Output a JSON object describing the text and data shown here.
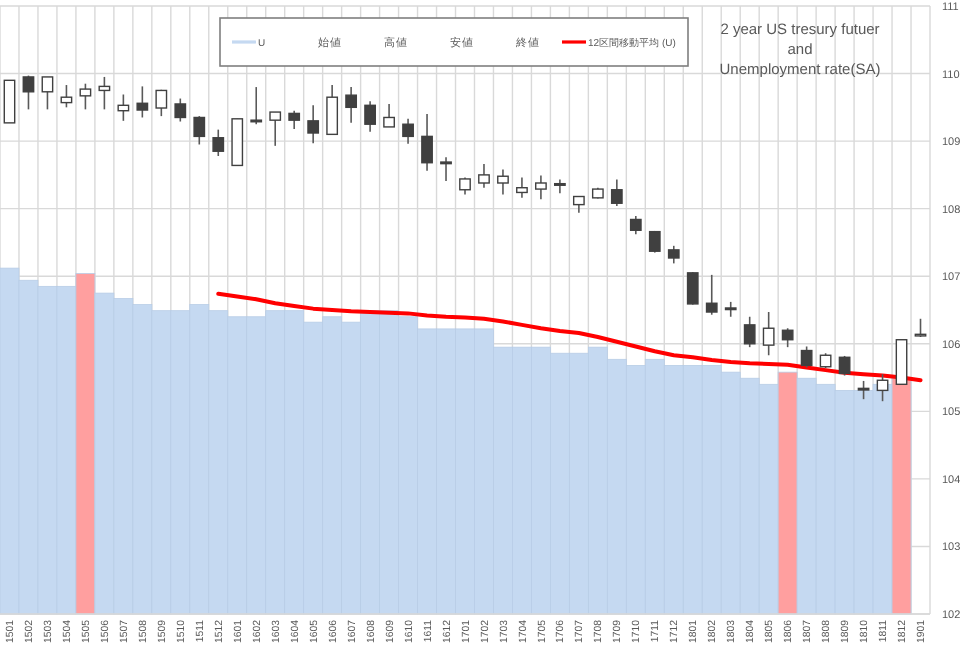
{
  "chart_data": {
    "type": "candlestick",
    "title": "2 year US  tresury futuer\nand\nUnemployment rate(SA)",
    "categories": [
      "1501",
      "1502",
      "1503",
      "1504",
      "1505",
      "1506",
      "1507",
      "1508",
      "1509",
      "1510",
      "1511",
      "1512",
      "1601",
      "1602",
      "1603",
      "1604",
      "1605",
      "1606",
      "1607",
      "1608",
      "1609",
      "1610",
      "1611",
      "1612",
      "1701",
      "1702",
      "1703",
      "1704",
      "1705",
      "1706",
      "1707",
      "1708",
      "1709",
      "1710",
      "1711",
      "1712",
      "1801",
      "1802",
      "1803",
      "1804",
      "1805",
      "1806",
      "1807",
      "1808",
      "1809",
      "1810",
      "1811",
      "1812",
      "1901"
    ],
    "ohlc": [
      [
        109.27,
        109.9,
        109.27,
        109.9
      ],
      [
        109.95,
        109.97,
        109.47,
        109.73
      ],
      [
        109.73,
        109.95,
        109.47,
        109.95
      ],
      [
        109.57,
        109.83,
        109.5,
        109.65
      ],
      [
        109.67,
        109.85,
        109.47,
        109.77
      ],
      [
        109.75,
        109.95,
        109.47,
        109.81
      ],
      [
        109.45,
        109.69,
        109.3,
        109.53
      ],
      [
        109.56,
        109.81,
        109.35,
        109.46
      ],
      [
        109.49,
        109.76,
        109.37,
        109.75
      ],
      [
        109.55,
        109.63,
        109.29,
        109.35
      ],
      [
        109.35,
        109.37,
        108.95,
        109.07
      ],
      [
        109.05,
        109.17,
        108.78,
        108.85
      ],
      [
        108.64,
        109.33,
        108.64,
        109.33
      ],
      [
        109.31,
        109.8,
        109.25,
        109.29
      ],
      [
        109.31,
        109.43,
        108.93,
        109.43
      ],
      [
        109.41,
        109.45,
        109.18,
        109.31
      ],
      [
        109.3,
        109.53,
        108.97,
        109.12
      ],
      [
        109.1,
        109.83,
        109.1,
        109.65
      ],
      [
        109.68,
        109.8,
        109.27,
        109.5
      ],
      [
        109.53,
        109.59,
        109.14,
        109.25
      ],
      [
        109.21,
        109.55,
        109.21,
        109.35
      ],
      [
        109.25,
        109.33,
        108.96,
        109.07
      ],
      [
        109.07,
        109.4,
        108.56,
        108.68
      ],
      [
        108.69,
        108.76,
        108.41,
        108.67
      ],
      [
        108.28,
        108.46,
        108.21,
        108.44
      ],
      [
        108.38,
        108.66,
        108.31,
        108.5
      ],
      [
        108.38,
        108.58,
        108.21,
        108.48
      ],
      [
        108.24,
        108.46,
        108.16,
        108.31
      ],
      [
        108.29,
        108.49,
        108.14,
        108.38
      ],
      [
        108.37,
        108.43,
        108.23,
        108.35
      ],
      [
        108.06,
        108.18,
        107.94,
        108.18
      ],
      [
        108.16,
        108.31,
        108.15,
        108.29
      ],
      [
        108.28,
        108.43,
        108.04,
        108.08
      ],
      [
        107.84,
        107.89,
        107.62,
        107.68
      ],
      [
        107.66,
        107.67,
        107.35,
        107.37
      ],
      [
        107.39,
        107.45,
        107.19,
        107.27
      ],
      [
        107.05,
        107.06,
        106.58,
        106.59
      ],
      [
        106.6,
        107.02,
        106.43,
        106.47
      ],
      [
        106.53,
        106.62,
        106.4,
        106.51
      ],
      [
        106.28,
        106.4,
        105.95,
        106.0
      ],
      [
        105.98,
        106.47,
        105.83,
        106.23
      ],
      [
        106.2,
        106.23,
        105.95,
        106.06
      ],
      [
        105.9,
        105.96,
        105.65,
        105.68
      ],
      [
        105.66,
        105.86,
        105.64,
        105.83
      ],
      [
        105.8,
        105.82,
        105.53,
        105.56
      ],
      [
        105.34,
        105.45,
        105.18,
        105.32
      ],
      [
        105.31,
        105.55,
        105.15,
        105.46
      ],
      [
        105.4,
        106.06,
        105.4,
        106.06
      ],
      [
        106.12,
        106.37,
        106.1,
        106.14
      ]
    ],
    "series": [
      {
        "type": "bar",
        "name": "U",
        "color": "#c5d9f1",
        "colors": [
          "#c5d9f1",
          "#c5d9f1",
          "#c5d9f1",
          "#c5d9f1",
          "#ff9f9f",
          "#c5d9f1",
          "#c5d9f1",
          "#c5d9f1",
          "#c5d9f1",
          "#c5d9f1",
          "#c5d9f1",
          "#c5d9f1",
          "#c5d9f1",
          "#c5d9f1",
          "#c5d9f1",
          "#c5d9f1",
          "#c5d9f1",
          "#c5d9f1",
          "#c5d9f1",
          "#c5d9f1",
          "#c5d9f1",
          "#c5d9f1",
          "#c5d9f1",
          "#c5d9f1",
          "#c5d9f1",
          "#c5d9f1",
          "#c5d9f1",
          "#c5d9f1",
          "#c5d9f1",
          "#c5d9f1",
          "#c5d9f1",
          "#c5d9f1",
          "#c5d9f1",
          "#c5d9f1",
          "#c5d9f1",
          "#c5d9f1",
          "#c5d9f1",
          "#c5d9f1",
          "#c5d9f1",
          "#c5d9f1",
          "#c5d9f1",
          "#ff9f9f",
          "#c5d9f1",
          "#c5d9f1",
          "#c5d9f1",
          "#c5d9f1",
          "#c5d9f1",
          "#ff9f9f",
          null
        ],
        "values": [
          107.12,
          106.94,
          106.85,
          106.85,
          107.04,
          106.75,
          106.67,
          106.58,
          106.49,
          106.49,
          106.58,
          106.49,
          106.4,
          106.4,
          106.49,
          106.49,
          106.32,
          106.4,
          106.32,
          106.49,
          106.49,
          106.4,
          106.22,
          106.22,
          106.22,
          106.22,
          105.95,
          105.95,
          105.95,
          105.86,
          105.86,
          105.95,
          105.77,
          105.68,
          105.77,
          105.68,
          105.68,
          105.68,
          105.58,
          105.49,
          105.4,
          105.58,
          105.49,
          105.4,
          105.31,
          105.31,
          105.4,
          105.49,
          null
        ]
      },
      {
        "type": "line",
        "name": "12区間移動平均 (U)",
        "color": "#ff0000",
        "values": [
          null,
          null,
          null,
          null,
          null,
          null,
          null,
          null,
          null,
          null,
          null,
          106.74,
          106.7,
          106.66,
          106.6,
          106.56,
          106.52,
          106.5,
          106.48,
          106.47,
          106.46,
          106.45,
          106.42,
          106.4,
          106.39,
          106.37,
          106.33,
          106.28,
          106.23,
          106.19,
          106.16,
          106.1,
          106.03,
          105.96,
          105.89,
          105.83,
          105.8,
          105.76,
          105.73,
          105.71,
          105.7,
          105.69,
          105.65,
          105.61,
          105.57,
          105.55,
          105.53,
          105.5,
          105.46
        ]
      }
    ],
    "ylim": [
      102,
      111
    ],
    "yticks": [
      102,
      103,
      104,
      105,
      106,
      107,
      108,
      109,
      110,
      111
    ],
    "grid": true,
    "legend": "top",
    "annotations": [
      "始値",
      "高値",
      "安値",
      "終値"
    ]
  }
}
